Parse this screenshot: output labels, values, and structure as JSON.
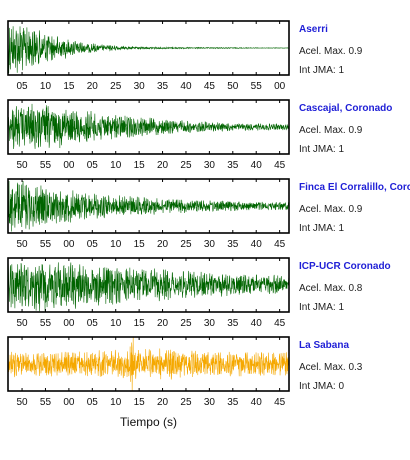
{
  "chart_data": {
    "type": "line",
    "xlabel": "Tiempo (s)",
    "grid": false,
    "acc_label": "Acel. Max.",
    "jma_label": "Int JMA:",
    "panels": [
      {
        "station": "Aserri",
        "acel_max": "0.9",
        "int_jma": "1",
        "color": "#006400",
        "x_ticks": [
          "05",
          "10",
          "15",
          "20",
          "25",
          "30",
          "35",
          "40",
          "45",
          "50",
          "55",
          "00"
        ],
        "amplitude_envelope": [
          1.0,
          0.75,
          0.45,
          0.25,
          0.12,
          0.06,
          0.04,
          0.03,
          0.02,
          0.02,
          0.015,
          0.01,
          0.01
        ]
      },
      {
        "station": "Cascajal, Coronado",
        "acel_max": "0.9",
        "int_jma": "1",
        "color": "#006400",
        "x_ticks": [
          "50",
          "55",
          "00",
          "05",
          "10",
          "15",
          "20",
          "25",
          "30",
          "35",
          "40",
          "45"
        ],
        "amplitude_envelope": [
          0.9,
          0.85,
          0.75,
          0.62,
          0.5,
          0.4,
          0.32,
          0.26,
          0.2,
          0.16,
          0.13,
          0.11,
          0.1
        ]
      },
      {
        "station": "Finca El Corralillo, Coronado",
        "acel_max": "0.9",
        "int_jma": "1",
        "color": "#006400",
        "x_ticks": [
          "50",
          "55",
          "00",
          "05",
          "10",
          "15",
          "20",
          "25",
          "30",
          "35",
          "40",
          "45"
        ],
        "amplitude_envelope": [
          0.95,
          0.8,
          0.65,
          0.52,
          0.42,
          0.35,
          0.3,
          0.26,
          0.22,
          0.19,
          0.17,
          0.15,
          0.14
        ]
      },
      {
        "station": "ICP-UCR Coronado",
        "acel_max": "0.8",
        "int_jma": "1",
        "color": "#006400",
        "x_ticks": [
          "50",
          "55",
          "00",
          "05",
          "10",
          "15",
          "20",
          "25",
          "30",
          "35",
          "40",
          "45"
        ],
        "amplitude_envelope": [
          0.85,
          0.9,
          0.85,
          0.8,
          0.72,
          0.65,
          0.58,
          0.52,
          0.46,
          0.42,
          0.38,
          0.35,
          0.32
        ]
      },
      {
        "station": "La Sabana",
        "acel_max": "0.3",
        "int_jma": "0",
        "color": "#f5a800",
        "x_ticks": [
          "50",
          "55",
          "00",
          "05",
          "10",
          "15",
          "20",
          "25",
          "30",
          "35",
          "40",
          "45"
        ],
        "amplitude_envelope": [
          0.45,
          0.45,
          0.45,
          0.45,
          0.48,
          0.5,
          0.55,
          0.55,
          0.45,
          0.42,
          0.42,
          0.42,
          0.42
        ],
        "spike_fraction": 0.44,
        "spike_amplitude": 1.0
      }
    ]
  }
}
